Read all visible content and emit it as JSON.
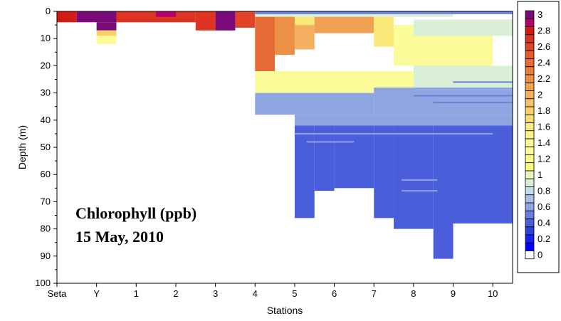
{
  "chart_data": {
    "type": "heatmap",
    "title": "",
    "xlabel": "Stations",
    "ylabel": "Depth (m)",
    "ylim": [
      100,
      0
    ],
    "y_ticks": [
      0,
      10,
      20,
      30,
      40,
      50,
      60,
      70,
      80,
      90,
      100
    ],
    "x_categories": [
      "Seta",
      "Y",
      "1",
      "2",
      "3",
      "4",
      "5",
      "6",
      "7",
      "8",
      "9",
      "10"
    ],
    "colorbar": {
      "levels": [
        {
          "label": "3",
          "color": "#7a0a7a"
        },
        {
          "label": "",
          "color": "#b3006b"
        },
        {
          "label": "2.8",
          "color": "#d41a14"
        },
        {
          "label": "",
          "color": "#dd3320"
        },
        {
          "label": "2.6",
          "color": "#e0452a"
        },
        {
          "label": "",
          "color": "#e55a2e"
        },
        {
          "label": "2.4",
          "color": "#e56a35"
        },
        {
          "label": "",
          "color": "#e87d3e"
        },
        {
          "label": "2.2",
          "color": "#ec9045"
        },
        {
          "label": "",
          "color": "#f0a152"
        },
        {
          "label": "2",
          "color": "#f4b060"
        },
        {
          "label": "",
          "color": "#f6c268"
        },
        {
          "label": "1.8",
          "color": "#f8d06c"
        },
        {
          "label": "",
          "color": "#fadd72"
        },
        {
          "label": "1.6",
          "color": "#fbe97a"
        },
        {
          "label": "",
          "color": "#fcf286"
        },
        {
          "label": "1.4",
          "color": "#fbf792"
        },
        {
          "label": "",
          "color": "#fbfb99"
        },
        {
          "label": "1.2",
          "color": "#fcfc8a"
        },
        {
          "label": "",
          "color": "#f6fc7c"
        },
        {
          "label": "1",
          "color": "#e8f5bf"
        },
        {
          "label": "",
          "color": "#d9f0d7"
        },
        {
          "label": "0.8",
          "color": "#c3dcea"
        },
        {
          "label": "",
          "color": "#a9bee8"
        },
        {
          "label": "0.6",
          "color": "#8fa5e2"
        },
        {
          "label": "",
          "color": "#6a7fdc"
        },
        {
          "label": "0.4",
          "color": "#4a5edc"
        },
        {
          "label": "",
          "color": "#2f3fe0"
        },
        {
          "label": "0.2",
          "color": "#1622f0"
        },
        {
          "label": "",
          "color": "#0000ff"
        },
        {
          "label": "0",
          "color": "#ffffff"
        }
      ]
    },
    "field": [
      {
        "x0": 0.0,
        "x1": 0.5,
        "d0": 0,
        "d1": 4,
        "color": "#d41a14"
      },
      {
        "x0": 0.5,
        "x1": 1.5,
        "d0": 0,
        "d1": 4,
        "color": "#7a0a7a"
      },
      {
        "x0": 1.0,
        "x1": 1.5,
        "d0": 4,
        "d1": 7,
        "color": "#7a0a7a"
      },
      {
        "x0": 1.0,
        "x1": 1.5,
        "d0": 7,
        "d1": 9,
        "color": "#f8d06c"
      },
      {
        "x0": 1.0,
        "x1": 1.5,
        "d0": 9,
        "d1": 12,
        "color": "#fbfb99"
      },
      {
        "x0": 1.5,
        "x1": 3.5,
        "d0": 0,
        "d1": 4,
        "color": "#dd3320"
      },
      {
        "x0": 2.5,
        "x1": 3.0,
        "d0": 0,
        "d1": 2,
        "color": "#b3006b"
      },
      {
        "x0": 3.5,
        "x1": 4.0,
        "d0": 0,
        "d1": 7,
        "color": "#dd3320"
      },
      {
        "x0": 4.0,
        "x1": 4.5,
        "d0": 0,
        "d1": 7,
        "color": "#7a0a7a"
      },
      {
        "x0": 4.5,
        "x1": 5.0,
        "d0": 0,
        "d1": 6,
        "color": "#e0452a"
      },
      {
        "x0": 5.0,
        "x1": 10.0,
        "d0": 0,
        "d1": 2,
        "color": "#d9f0d7"
      },
      {
        "x0": 5.0,
        "x1": 11.5,
        "d0": 0,
        "d1": 1,
        "color": "#6a7fdc"
      },
      {
        "x0": 5.0,
        "x1": 6.5,
        "d0": 2,
        "d1": 5,
        "color": "#fbe97a"
      },
      {
        "x0": 5.0,
        "x1": 5.5,
        "d0": 2,
        "d1": 22,
        "color": "#e56a35"
      },
      {
        "x0": 5.5,
        "x1": 6.0,
        "d0": 2,
        "d1": 16,
        "color": "#ec9045"
      },
      {
        "x0": 6.0,
        "x1": 6.5,
        "d0": 5,
        "d1": 14,
        "color": "#f4b060"
      },
      {
        "x0": 6.5,
        "x1": 8.0,
        "d0": 2,
        "d1": 8,
        "color": "#f0a152"
      },
      {
        "x0": 8.0,
        "x1": 8.5,
        "d0": 2,
        "d1": 13,
        "color": "#fbe97a"
      },
      {
        "x0": 5.0,
        "x1": 9.0,
        "d0": 22,
        "d1": 30,
        "color": "#fbfb99"
      },
      {
        "x0": 8.5,
        "x1": 11.0,
        "d0": 5,
        "d1": 20,
        "color": "#fbfb99"
      },
      {
        "x0": 9.0,
        "x1": 11.5,
        "d0": 3,
        "d1": 9,
        "color": "#d9f0d7"
      },
      {
        "x0": 9.0,
        "x1": 11.5,
        "d0": 20,
        "d1": 28,
        "color": "#d9f0d7"
      },
      {
        "x0": 5.0,
        "x1": 8.0,
        "d0": 30,
        "d1": 38,
        "color": "#8fa5e2"
      },
      {
        "x0": 8.0,
        "x1": 11.5,
        "d0": 28,
        "d1": 38,
        "color": "#8fa5e2"
      },
      {
        "x0": 6.0,
        "x1": 11.5,
        "d0": 38,
        "d1": 42,
        "color": "#8fa5e2"
      },
      {
        "x0": 6.0,
        "x1": 6.5,
        "d0": 42,
        "d1": 76,
        "color": "#4a5edc"
      },
      {
        "x0": 6.5,
        "x1": 7.0,
        "d0": 42,
        "d1": 66,
        "color": "#4a5edc"
      },
      {
        "x0": 7.0,
        "x1": 8.0,
        "d0": 42,
        "d1": 65,
        "color": "#4a5edc"
      },
      {
        "x0": 8.0,
        "x1": 8.5,
        "d0": 42,
        "d1": 76,
        "color": "#4a5edc"
      },
      {
        "x0": 8.5,
        "x1": 9.5,
        "d0": 42,
        "d1": 80,
        "color": "#4a5edc"
      },
      {
        "x0": 9.5,
        "x1": 10.0,
        "d0": 42,
        "d1": 91,
        "color": "#4a5edc"
      },
      {
        "x0": 10.0,
        "x1": 11.5,
        "d0": 42,
        "d1": 78,
        "color": "#4a5edc"
      }
    ],
    "streaks": [
      {
        "x0": 9.0,
        "x1": 11.5,
        "d": 31,
        "color": "#6a7fdc"
      },
      {
        "x0": 9.5,
        "x1": 11.5,
        "d": 33.5,
        "color": "#6a7fdc"
      },
      {
        "x0": 6.0,
        "x1": 11.0,
        "d": 45,
        "color": "#8fa5e2"
      },
      {
        "x0": 6.3,
        "x1": 7.5,
        "d": 48,
        "color": "#8fa5e2"
      },
      {
        "x0": 8.7,
        "x1": 9.6,
        "d": 62,
        "color": "#8fa5e2"
      },
      {
        "x0": 8.7,
        "x1": 9.6,
        "d": 66,
        "color": "#8fa5e2"
      },
      {
        "x0": 10.0,
        "x1": 11.5,
        "d": 26,
        "color": "#6a7fdc"
      }
    ]
  },
  "annotation": {
    "line1": "Chlorophyll (ppb)",
    "line2": "15 May, 2010"
  }
}
